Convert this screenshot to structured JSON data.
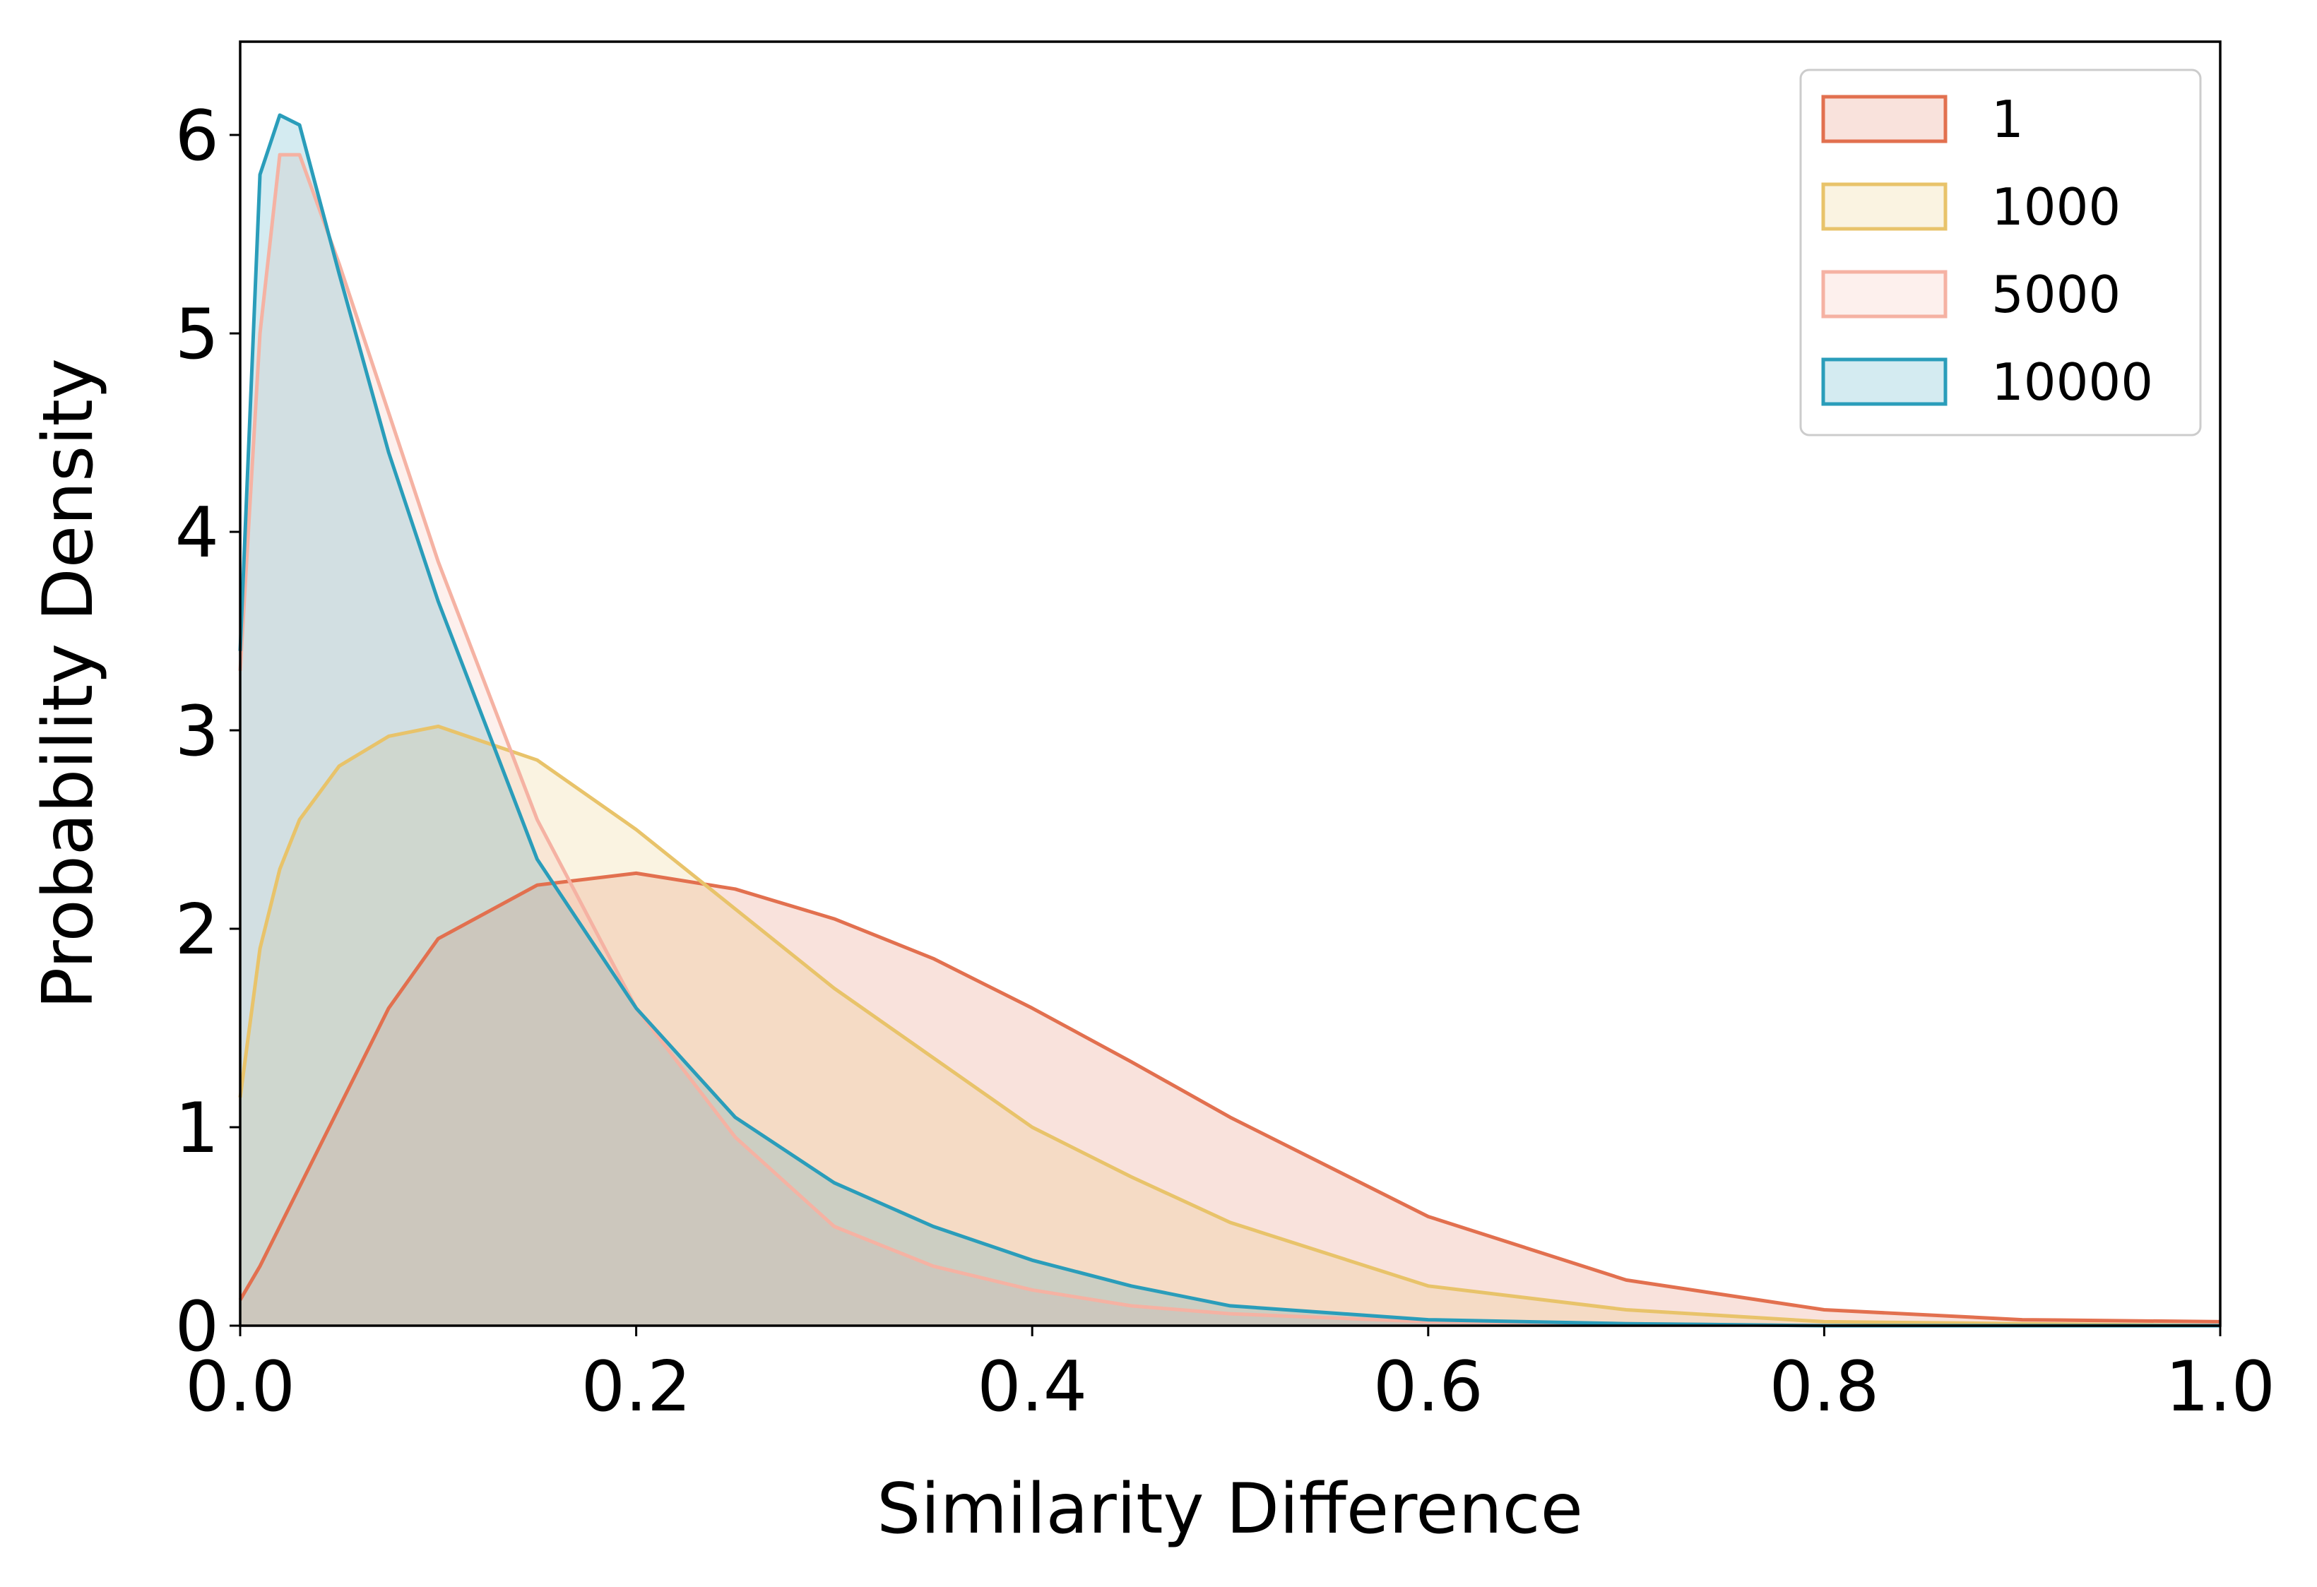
{
  "chart_data": {
    "type": "area",
    "xlabel": "Similarity Difference",
    "ylabel": "Probability Density",
    "x": [
      0,
      0.01,
      0.02,
      0.03,
      0.05,
      0.075,
      0.1,
      0.15,
      0.2,
      0.25,
      0.3,
      0.35,
      0.4,
      0.45,
      0.5,
      0.6,
      0.7,
      0.8,
      0.9,
      1.0
    ],
    "series": [
      {
        "name": "1",
        "color": "#e2704f",
        "values": [
          0.13,
          0.3,
          0.5,
          0.7,
          1.1,
          1.6,
          1.95,
          2.22,
          2.28,
          2.2,
          2.05,
          1.85,
          1.6,
          1.33,
          1.05,
          0.55,
          0.23,
          0.08,
          0.03,
          0.02
        ]
      },
      {
        "name": "1000",
        "color": "#e8c36a",
        "values": [
          1.15,
          1.9,
          2.3,
          2.55,
          2.82,
          2.97,
          3.02,
          2.85,
          2.5,
          2.1,
          1.7,
          1.35,
          1.0,
          0.75,
          0.52,
          0.2,
          0.08,
          0.02,
          0.01,
          0
        ]
      },
      {
        "name": "5000",
        "color": "#f5b2a3",
        "values": [
          3.3,
          5.0,
          5.9,
          5.9,
          5.35,
          4.6,
          3.85,
          2.55,
          1.6,
          0.95,
          0.5,
          0.3,
          0.18,
          0.1,
          0.06,
          0.02,
          0.01,
          0,
          0,
          0
        ]
      },
      {
        "name": "10000",
        "color": "#2a9dba",
        "values": [
          3.4,
          5.8,
          6.1,
          6.05,
          5.3,
          4.4,
          3.65,
          2.35,
          1.6,
          1.05,
          0.72,
          0.5,
          0.33,
          0.2,
          0.1,
          0.03,
          0.01,
          0,
          0,
          0
        ]
      }
    ],
    "xlim": [
      0,
      1.0
    ],
    "xticks": [
      {
        "value": 0,
        "label": "0.0"
      },
      0.2,
      0.4,
      0.6,
      0.8,
      {
        "value": 1.0,
        "label": "1.0"
      }
    ],
    "ylim": [
      0,
      6.47
    ],
    "yticks": [
      0,
      1,
      2,
      3,
      4,
      5,
      6
    ],
    "fill_alpha": 0.2,
    "legend": "upper right"
  }
}
